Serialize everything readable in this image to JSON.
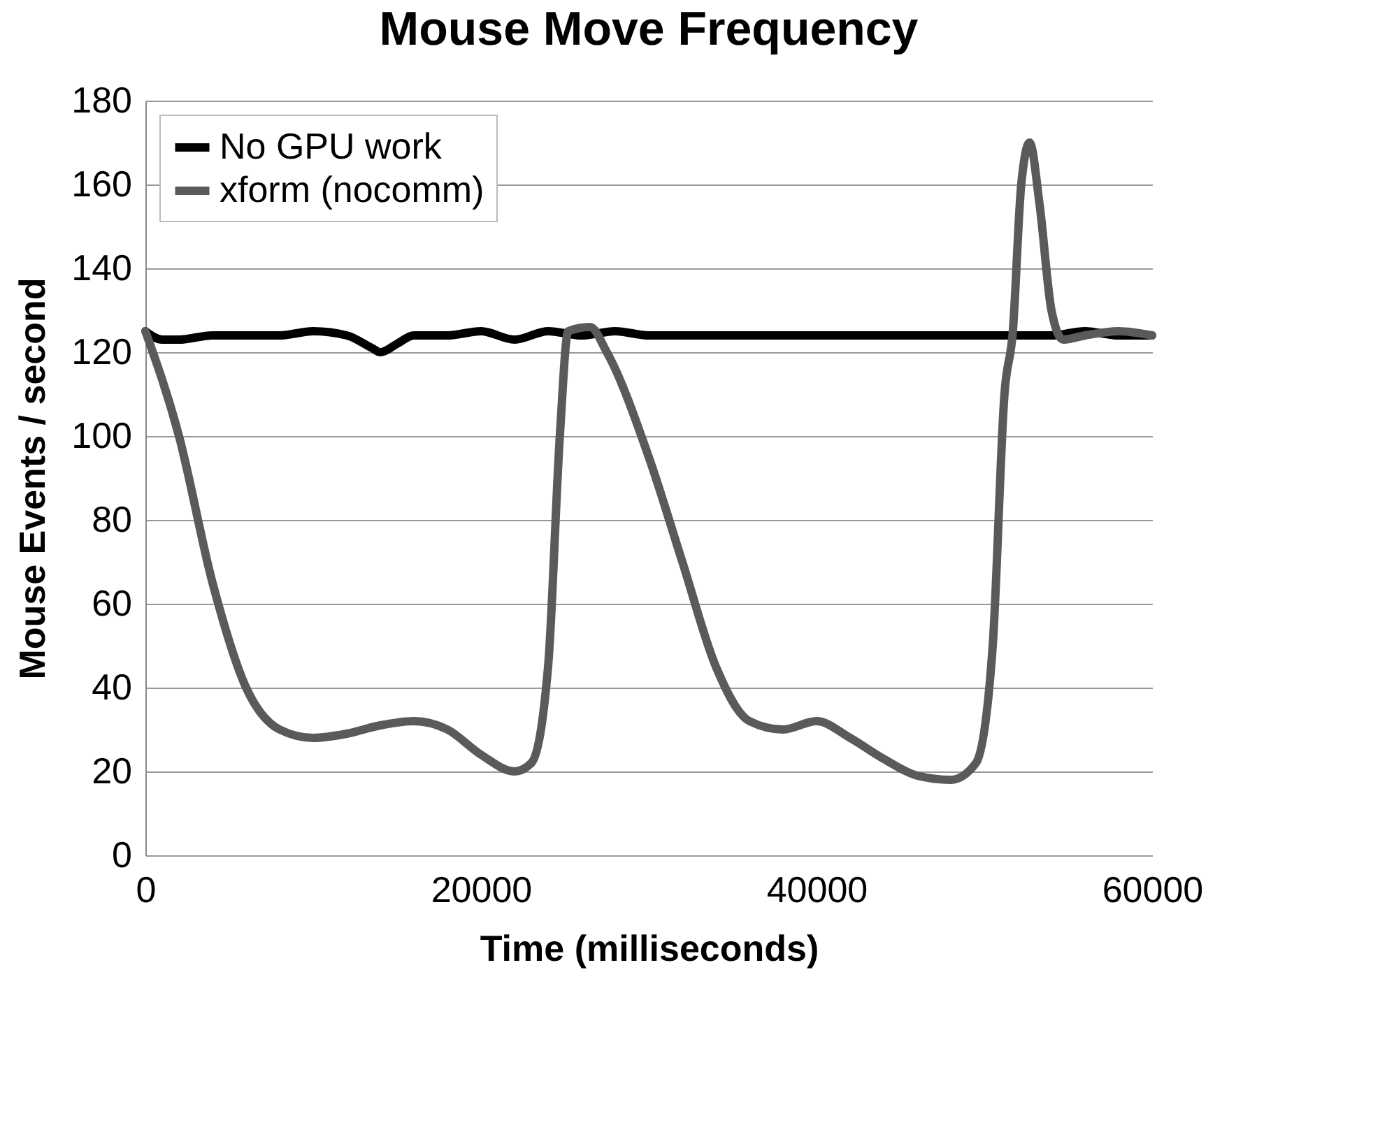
{
  "chart_data": {
    "type": "line",
    "title": "Mouse Move Frequency",
    "xlabel": "Time (milliseconds)",
    "ylabel": "Mouse Events / second",
    "xlim": [
      0,
      60000
    ],
    "xticks": [
      0,
      20000,
      40000,
      60000
    ],
    "ylim": [
      0,
      180
    ],
    "yticks": [
      0,
      20,
      40,
      60,
      80,
      100,
      120,
      140,
      160,
      180
    ],
    "grid": "y",
    "legend": "top left",
    "marker": "none",
    "line_style": "solid",
    "series": [
      {
        "name": "No GPU work",
        "color": "#000000",
        "x": [
          0,
          1000,
          2000,
          4000,
          6000,
          8000,
          10000,
          12000,
          13500,
          14000,
          15000,
          16000,
          18000,
          20000,
          22000,
          24000,
          26000,
          28000,
          30000,
          34000,
          38000,
          42000,
          46000,
          50000,
          54000,
          56000,
          58000,
          60000
        ],
        "values": [
          125,
          123,
          123,
          124,
          124,
          124,
          125,
          124,
          121,
          120,
          122,
          124,
          124,
          125,
          123,
          125,
          124,
          125,
          124,
          124,
          124,
          124,
          124,
          124,
          124,
          125,
          124,
          124
        ]
      },
      {
        "name": "xform (nocomm)",
        "color": "#5a5a5a",
        "x": [
          0,
          2000,
          4000,
          6000,
          8000,
          10000,
          12000,
          14000,
          16000,
          18000,
          20000,
          22000,
          23000,
          24000,
          24700,
          25200,
          26500,
          27500,
          30000,
          32000,
          34000,
          36000,
          38000,
          40000,
          42000,
          44000,
          46000,
          48000,
          49500,
          50500,
          51200,
          51700,
          52200,
          52700,
          53300,
          54000,
          54700,
          56000,
          58000,
          60000
        ],
        "values": [
          125,
          100,
          65,
          40,
          30,
          28,
          29,
          31,
          32,
          30,
          24,
          20,
          22,
          45,
          100,
          125,
          126,
          120,
          95,
          70,
          45,
          32,
          30,
          32,
          28,
          23,
          19,
          18,
          22,
          50,
          110,
          125,
          160,
          170,
          155,
          130,
          123,
          124,
          125,
          124
        ]
      }
    ]
  }
}
